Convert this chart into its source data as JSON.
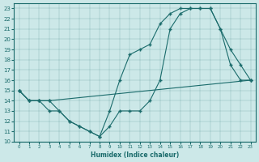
{
  "xlabel": "Humidex (Indice chaleur)",
  "bg_color": "#cce8e8",
  "line_color": "#1a6b6b",
  "xlim": [
    -0.5,
    23.5
  ],
  "ylim": [
    10,
    23.5
  ],
  "xticks": [
    0,
    1,
    2,
    3,
    4,
    5,
    6,
    7,
    8,
    9,
    10,
    11,
    12,
    13,
    14,
    15,
    16,
    17,
    18,
    19,
    20,
    21,
    22,
    23
  ],
  "yticks": [
    10,
    11,
    12,
    13,
    14,
    15,
    16,
    17,
    18,
    19,
    20,
    21,
    22,
    23
  ],
  "line1_x": [
    0,
    1,
    2,
    3,
    4,
    5,
    6,
    7,
    8,
    9,
    10,
    11,
    12,
    13,
    14,
    15,
    16,
    17,
    18,
    19,
    20,
    21,
    22,
    23
  ],
  "line1_y": [
    15,
    14,
    14,
    13,
    13,
    12,
    11.5,
    11,
    10.5,
    11.5,
    13,
    13,
    13,
    14,
    16,
    21,
    22.5,
    23,
    23,
    23,
    21,
    17.5,
    16,
    16
  ],
  "line2_x": [
    0,
    1,
    2,
    3,
    4,
    5,
    6,
    7,
    8,
    9,
    10,
    11,
    12,
    13,
    14,
    15,
    16,
    17,
    18,
    19,
    20,
    21,
    22,
    23
  ],
  "line2_y": [
    15,
    14,
    14,
    14,
    13,
    12,
    11.5,
    11,
    10.5,
    13,
    16,
    18.5,
    19,
    19.5,
    21.5,
    22.5,
    23,
    23,
    23,
    23,
    21,
    19,
    17.5,
    16
  ],
  "line3_x": [
    0,
    1,
    2,
    3,
    23
  ],
  "line3_y": [
    15,
    14,
    14,
    14,
    16
  ]
}
